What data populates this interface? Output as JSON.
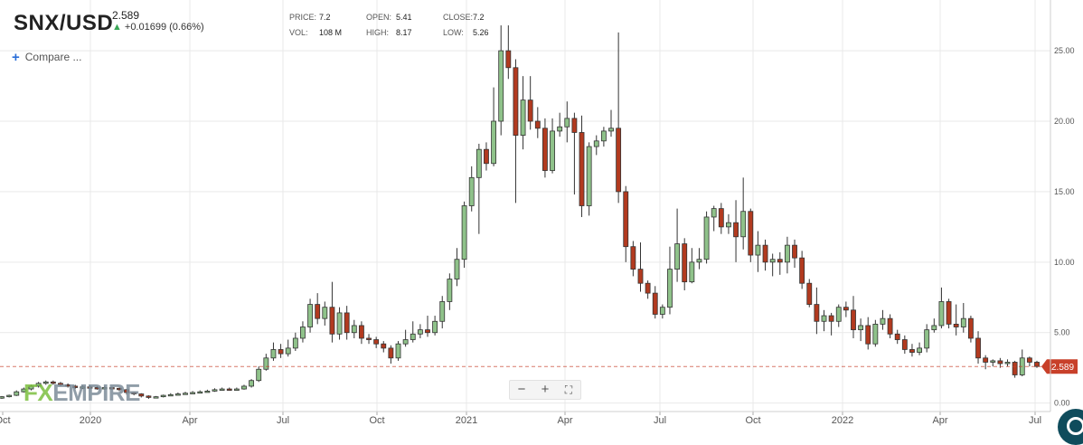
{
  "header": {
    "pair": "SNX/USD",
    "price": "2.589",
    "change": "+0.01699 (0.66%)",
    "stats": [
      {
        "label": "PRICE:",
        "value": "7.2"
      },
      {
        "label": "OPEN:",
        "value": "5.41"
      },
      {
        "label": "CLOSE:",
        "value": "7.2"
      },
      {
        "label": "VOL:",
        "value": "108 M"
      },
      {
        "label": "HIGH:",
        "value": "8.17"
      },
      {
        "label": "LOW:",
        "value": "5.26"
      }
    ],
    "compare_label": "Compare ..."
  },
  "controls": {
    "zoom_out": "−",
    "zoom_in": "+",
    "fullscreen": "⛶"
  },
  "logo": {
    "fx": "FX",
    "empire": "EMPIRE"
  },
  "colors": {
    "up": "#8fc28a",
    "down": "#b23a1f",
    "grid": "#e9e9e9",
    "last_price": "#c8402a"
  },
  "chart_data": {
    "type": "candlestick",
    "x_ticks": [
      "Oct",
      "2020",
      "Apr",
      "Jul",
      "Oct",
      "2021",
      "Apr",
      "Jul",
      "Oct",
      "2022",
      "Apr",
      "Jul"
    ],
    "y_ticks": [
      "0.00",
      "5.00",
      "10.00",
      "15.00",
      "20.00",
      "25.00"
    ],
    "ylim": [
      -0.6,
      28.6
    ],
    "last_price": 2.589,
    "last_price_label": "2.589",
    "grid": true,
    "candles": [
      [
        0.35,
        0.45,
        0.5,
        0.3
      ],
      [
        0.45,
        0.55,
        0.6,
        0.4
      ],
      [
        0.55,
        0.8,
        0.9,
        0.5
      ],
      [
        0.8,
        1.0,
        1.1,
        0.75
      ],
      [
        1.0,
        1.2,
        1.3,
        0.9
      ],
      [
        1.2,
        1.4,
        1.5,
        1.1
      ],
      [
        1.4,
        1.5,
        1.6,
        1.3
      ],
      [
        1.5,
        1.4,
        1.6,
        1.3
      ],
      [
        1.4,
        1.3,
        1.5,
        1.2
      ],
      [
        1.3,
        1.2,
        1.4,
        1.1
      ],
      [
        1.2,
        1.1,
        1.3,
        1.0
      ],
      [
        1.1,
        1.15,
        1.25,
        1.0
      ],
      [
        1.15,
        1.1,
        1.25,
        1.0
      ],
      [
        1.1,
        1.05,
        1.2,
        0.95
      ],
      [
        1.05,
        1.1,
        1.2,
        0.95
      ],
      [
        1.1,
        1.05,
        1.15,
        0.95
      ],
      [
        1.05,
        0.95,
        1.1,
        0.85
      ],
      [
        0.95,
        0.75,
        1.0,
        0.6
      ],
      [
        0.75,
        0.65,
        0.8,
        0.55
      ],
      [
        0.65,
        0.5,
        0.7,
        0.4
      ],
      [
        0.5,
        0.4,
        0.55,
        0.3
      ],
      [
        0.4,
        0.45,
        0.5,
        0.35
      ],
      [
        0.45,
        0.55,
        0.6,
        0.4
      ],
      [
        0.55,
        0.6,
        0.7,
        0.5
      ],
      [
        0.6,
        0.65,
        0.75,
        0.55
      ],
      [
        0.65,
        0.7,
        0.8,
        0.6
      ],
      [
        0.7,
        0.75,
        0.85,
        0.65
      ],
      [
        0.75,
        0.8,
        0.9,
        0.7
      ],
      [
        0.8,
        0.85,
        0.95,
        0.75
      ],
      [
        0.85,
        0.95,
        1.05,
        0.8
      ],
      [
        0.95,
        1.0,
        1.1,
        0.9
      ],
      [
        1.0,
        0.95,
        1.1,
        0.9
      ],
      [
        0.95,
        1.0,
        1.1,
        0.9
      ],
      [
        1.0,
        1.2,
        1.3,
        0.95
      ],
      [
        1.2,
        1.6,
        1.7,
        1.1
      ],
      [
        1.6,
        2.4,
        2.6,
        1.5
      ],
      [
        2.4,
        3.2,
        3.5,
        2.3
      ],
      [
        3.2,
        3.8,
        4.3,
        3.0
      ],
      [
        3.8,
        3.5,
        4.2,
        3.2
      ],
      [
        3.5,
        3.9,
        4.5,
        3.3
      ],
      [
        3.9,
        4.6,
        5.0,
        3.7
      ],
      [
        4.6,
        5.4,
        5.8,
        4.3
      ],
      [
        5.4,
        7.0,
        7.4,
        5.0
      ],
      [
        7.0,
        6.0,
        7.8,
        5.6
      ],
      [
        6.0,
        6.8,
        7.2,
        5.5
      ],
      [
        6.8,
        4.9,
        8.6,
        4.3
      ],
      [
        4.9,
        6.4,
        6.8,
        4.5
      ],
      [
        6.4,
        5.0,
        6.9,
        4.5
      ],
      [
        5.0,
        5.5,
        5.9,
        4.6
      ],
      [
        5.5,
        4.6,
        5.8,
        4.2
      ],
      [
        4.6,
        4.5,
        4.9,
        4.2
      ],
      [
        4.5,
        4.2,
        4.7,
        3.9
      ],
      [
        4.2,
        3.9,
        4.4,
        3.6
      ],
      [
        3.9,
        3.2,
        4.1,
        2.8
      ],
      [
        3.2,
        4.2,
        4.4,
        3.0
      ],
      [
        4.2,
        4.5,
        5.2,
        4.0
      ],
      [
        4.5,
        4.9,
        5.8,
        4.3
      ],
      [
        4.9,
        5.2,
        5.6,
        4.6
      ],
      [
        5.2,
        5.0,
        6.2,
        4.7
      ],
      [
        5.0,
        5.8,
        6.2,
        4.8
      ],
      [
        5.8,
        7.2,
        7.6,
        5.3
      ],
      [
        7.2,
        8.8,
        9.2,
        6.6
      ],
      [
        8.8,
        10.2,
        11.0,
        8.3
      ],
      [
        10.2,
        14.0,
        14.3,
        9.6
      ],
      [
        14.0,
        16.0,
        16.8,
        13.6
      ],
      [
        16.0,
        18.0,
        18.4,
        12.0
      ],
      [
        18.0,
        17.0,
        18.5,
        16.5
      ],
      [
        17.0,
        20.0,
        22.4,
        16.8
      ],
      [
        20.0,
        25.0,
        26.8,
        19.0
      ],
      [
        25.0,
        23.8,
        26.8,
        23.0
      ],
      [
        23.8,
        19.0,
        24.4,
        14.2
      ],
      [
        19.0,
        21.5,
        23.2,
        18.0
      ],
      [
        21.5,
        20.0,
        23.2,
        19.4
      ],
      [
        20.0,
        19.5,
        21.0,
        18.8
      ],
      [
        19.5,
        16.5,
        20.2,
        16.0
      ],
      [
        16.5,
        19.3,
        20.2,
        16.3
      ],
      [
        19.3,
        19.6,
        20.6,
        18.9
      ],
      [
        19.6,
        20.2,
        21.4,
        18.5
      ],
      [
        20.2,
        19.2,
        20.6,
        14.8
      ],
      [
        19.2,
        14.0,
        20.4,
        13.2
      ],
      [
        14.0,
        18.2,
        18.5,
        13.3
      ],
      [
        18.2,
        18.6,
        19.0,
        17.6
      ],
      [
        18.6,
        19.3,
        19.6,
        18.2
      ],
      [
        19.3,
        19.5,
        20.8,
        18.9
      ],
      [
        19.5,
        15.0,
        26.3,
        14.2
      ],
      [
        15.0,
        11.1,
        15.4,
        10.0
      ],
      [
        11.1,
        9.5,
        11.5,
        9.0
      ],
      [
        9.5,
        8.5,
        11.4,
        7.9
      ],
      [
        8.5,
        7.8,
        8.7,
        7.4
      ],
      [
        7.8,
        6.3,
        8.3,
        6.0
      ],
      [
        6.3,
        6.8,
        7.0,
        6.0
      ],
      [
        6.8,
        9.5,
        11.1,
        6.3
      ],
      [
        9.5,
        11.3,
        13.8,
        8.6
      ],
      [
        11.3,
        8.6,
        11.7,
        8.0
      ],
      [
        8.6,
        10.0,
        11.0,
        8.5
      ],
      [
        10.0,
        10.2,
        11.0,
        9.5
      ],
      [
        10.2,
        13.2,
        13.6,
        9.9
      ],
      [
        13.2,
        13.8,
        14.0,
        12.2
      ],
      [
        13.8,
        12.5,
        14.2,
        12.0
      ],
      [
        12.5,
        12.8,
        13.4,
        12.0
      ],
      [
        12.8,
        11.8,
        14.4,
        10.0
      ],
      [
        11.8,
        13.6,
        16.0,
        10.9
      ],
      [
        13.6,
        10.5,
        13.8,
        10.0
      ],
      [
        10.5,
        11.2,
        12.2,
        9.3
      ],
      [
        11.2,
        10.0,
        11.6,
        9.4
      ],
      [
        10.0,
        10.2,
        10.6,
        9.0
      ],
      [
        10.2,
        10.0,
        10.7,
        9.1
      ],
      [
        10.0,
        11.2,
        11.8,
        9.2
      ],
      [
        11.2,
        10.3,
        11.6,
        9.6
      ],
      [
        10.3,
        8.5,
        10.8,
        8.1
      ],
      [
        8.5,
        7.0,
        8.8,
        6.8
      ],
      [
        7.0,
        5.8,
        8.2,
        4.9
      ],
      [
        5.8,
        6.2,
        6.6,
        5.1
      ],
      [
        6.2,
        5.8,
        6.4,
        4.8
      ],
      [
        5.8,
        6.8,
        7.0,
        5.4
      ],
      [
        6.8,
        6.6,
        7.2,
        6.1
      ],
      [
        6.6,
        5.2,
        7.6,
        4.6
      ],
      [
        5.2,
        5.5,
        6.0,
        4.4
      ],
      [
        5.5,
        4.2,
        6.1,
        3.8
      ],
      [
        4.2,
        5.6,
        5.9,
        4.0
      ],
      [
        5.6,
        6.0,
        6.6,
        5.2
      ],
      [
        6.0,
        4.9,
        6.3,
        4.6
      ],
      [
        4.9,
        4.5,
        5.2,
        4.2
      ],
      [
        4.5,
        3.8,
        4.8,
        3.5
      ],
      [
        3.8,
        3.6,
        4.2,
        3.3
      ],
      [
        3.6,
        3.9,
        4.3,
        3.4
      ],
      [
        3.9,
        5.2,
        5.6,
        3.6
      ],
      [
        5.2,
        5.5,
        6.0,
        5.0
      ],
      [
        5.5,
        7.2,
        8.2,
        5.3
      ],
      [
        7.2,
        5.6,
        7.4,
        5.3
      ],
      [
        5.6,
        5.4,
        7.0,
        4.8
      ],
      [
        5.4,
        6.0,
        7.1,
        5.0
      ],
      [
        6.0,
        4.6,
        6.2,
        4.3
      ],
      [
        4.6,
        3.2,
        5.1,
        2.8
      ],
      [
        3.2,
        2.9,
        3.4,
        2.4
      ],
      [
        2.9,
        3.0,
        3.1,
        2.6
      ],
      [
        3.0,
        2.8,
        3.2,
        2.5
      ],
      [
        2.8,
        2.9,
        3.1,
        2.6
      ],
      [
        2.9,
        2.0,
        3.0,
        1.8
      ],
      [
        2.0,
        3.2,
        3.8,
        1.9
      ],
      [
        3.2,
        2.9,
        3.3,
        2.6
      ],
      [
        2.9,
        2.6,
        3.0,
        2.5
      ]
    ]
  }
}
